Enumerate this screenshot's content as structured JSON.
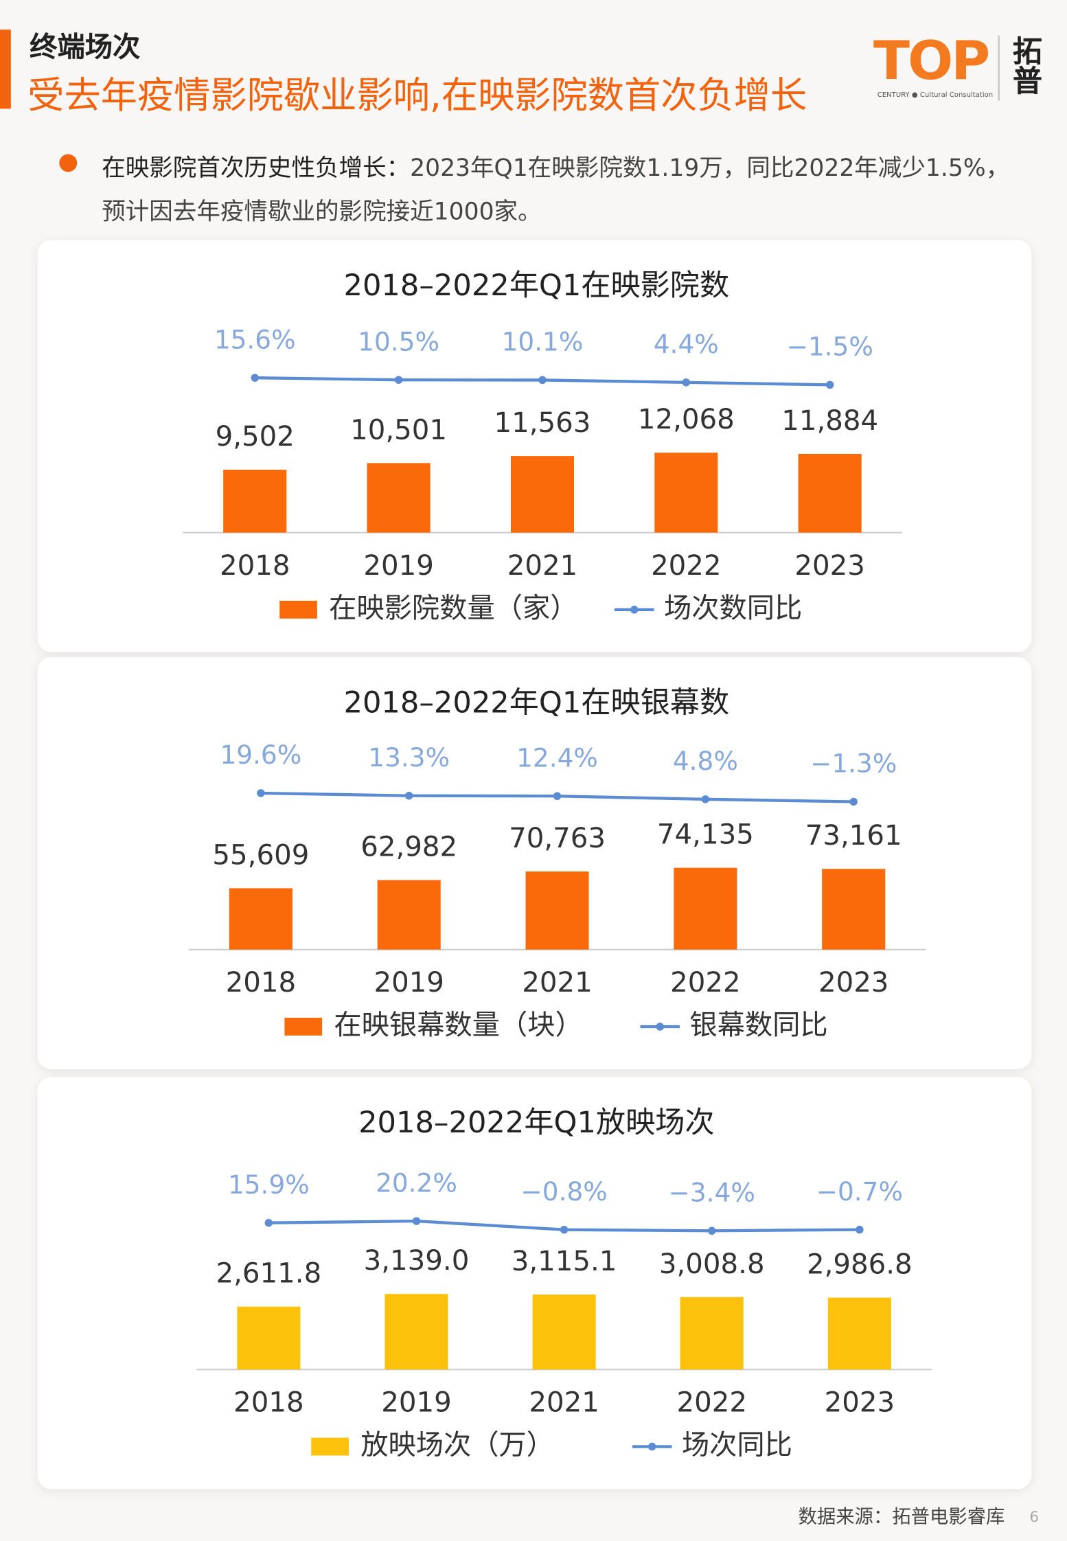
{
  "header": {
    "section": "终端场次",
    "title": "受去年疫情影院歇业影响,在映影院数首次负增长",
    "logo": "TOP",
    "logo_sub": "CENTURY ● Cultural Consultation",
    "brand": "拓普"
  },
  "bullet": {
    "label": "在映影院首次历史性负增长：",
    "text": "2023年Q1在映影院数1.19万，同比2022年减少1.5%，预计因去年疫情歇业的影院接近1000家。"
  },
  "chart_data": [
    {
      "type": "bar",
      "title": "2018–2022年Q1在映影院数",
      "categories": [
        "2018",
        "2019",
        "2021",
        "2022",
        "2023"
      ],
      "series": [
        {
          "name": "在映影院数量（家）",
          "color": "#fa6a0a",
          "values": [
            9502,
            10501,
            11563,
            12068,
            11884
          ],
          "value_labels": [
            "9,502",
            "10,501",
            "11,563",
            "12,068",
            "11,884"
          ]
        },
        {
          "name": "场次数同比",
          "color": "#5b8bd3",
          "axis": "y2",
          "values": [
            15.6,
            10.5,
            10.1,
            4.4,
            -1.5
          ],
          "value_labels": [
            "15.6%",
            "10.5%",
            "10.1%",
            "4.4%",
            "−1.5%"
          ]
        }
      ],
      "ylim": [
        0,
        20000
      ],
      "y2lim": [
        -130,
        110
      ]
    },
    {
      "type": "bar",
      "title": "2018–2022年Q1在映银幕数",
      "categories": [
        "2018",
        "2019",
        "2021",
        "2022",
        "2023"
      ],
      "series": [
        {
          "name": "在映银幕数量（块）",
          "color": "#fa6a0a",
          "values": [
            55609,
            62982,
            70763,
            74135,
            73161
          ],
          "value_labels": [
            "55,609",
            "62,982",
            "70,763",
            "74,135",
            "73,161"
          ]
        },
        {
          "name": "银幕数同比",
          "color": "#5b8bd3",
          "axis": "y2",
          "values": [
            19.6,
            13.3,
            12.4,
            4.8,
            -1.3
          ],
          "value_labels": [
            "19.6%",
            "13.3%",
            "12.4%",
            "4.8%",
            "−1.3%"
          ]
        }
      ],
      "ylim": [
        0,
        120000
      ],
      "y2lim": [
        -130,
        110
      ]
    },
    {
      "type": "bar",
      "title": "2018–2022年Q1放映场次",
      "categories": [
        "2018",
        "2019",
        "2021",
        "2022",
        "2023"
      ],
      "series": [
        {
          "name": "放映场次（万）",
          "color": "#fcc20b",
          "values": [
            2611.8,
            3139.0,
            3115.1,
            3008.8,
            2986.8
          ],
          "value_labels": [
            "2,611.8",
            "3,139.0",
            "3,115.1",
            "3,008.8",
            "2,986.8"
          ]
        },
        {
          "name": "场次同比",
          "color": "#5b8bd3",
          "axis": "y2",
          "values": [
            15.9,
            20.2,
            -0.8,
            -3.4,
            -0.7
          ],
          "value_labels": [
            "15.9%",
            "20.2%",
            "−0.8%",
            "−3.4%",
            "−0.7%"
          ]
        }
      ],
      "ylim": [
        0,
        5500
      ],
      "y2lim": [
        -110,
        130
      ]
    }
  ],
  "footer": {
    "source": "数据来源：拓普电影睿库",
    "page_number": "6"
  }
}
